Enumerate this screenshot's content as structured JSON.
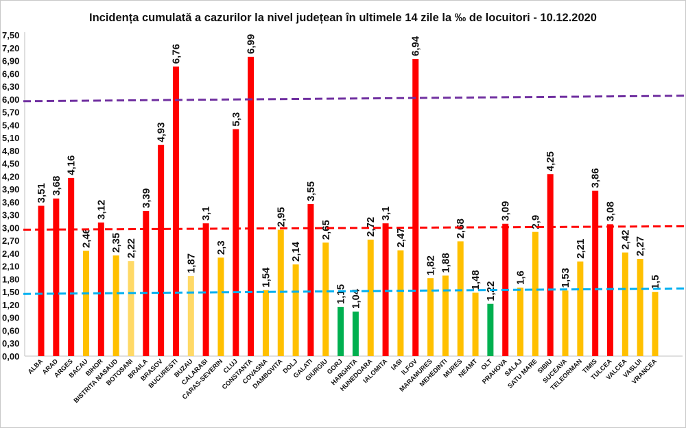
{
  "chart_data": {
    "type": "bar",
    "title": "Incidența cumulată a cazurilor la nivel județean în ultimele 14 zile la ‰ de locuitori - 10.12.2020",
    "xlabel": "",
    "ylabel": "",
    "ylim": [
      0,
      7.5
    ],
    "ytick_step": 0.3,
    "ytick_labels": [
      "0,00",
      "0,30",
      "0,60",
      "0,90",
      "1,20",
      "1,50",
      "1,80",
      "2,10",
      "2,40",
      "2,70",
      "3,00",
      "3,30",
      "3,60",
      "3,90",
      "4,20",
      "4,50",
      "4,80",
      "5,10",
      "5,40",
      "5,70",
      "6,00",
      "6,30",
      "6,60",
      "6,90",
      "7,20",
      "7,50"
    ],
    "grid": false,
    "legend": "none",
    "colors": {
      "red": "#ff0000",
      "orange": "#ffc000",
      "light_yellow": "#ffd966",
      "green": "#00b050",
      "threshold_6": "#7030a0",
      "threshold_3": "#ff0000",
      "threshold_1_5": "#00b0f0"
    },
    "thresholds": [
      {
        "value": 6.0,
        "color": "#7030a0"
      },
      {
        "value": 3.0,
        "color": "#ff0000"
      },
      {
        "value": 1.5,
        "color": "#00b0f0"
      }
    ],
    "categories": [
      "ALBA",
      "ARAD",
      "ARGES",
      "BACAU",
      "BIHOR",
      "BISTRITA NASAUD",
      "BOTOSANI",
      "BRAILA",
      "BRASOV",
      "BUCURESTI",
      "BUZAU",
      "CALARASI",
      "CARAS-SEVERIN",
      "CLUJ",
      "CONSTANTA",
      "COVASNA",
      "DAMBOVITA",
      "DOLJ",
      "GALATI",
      "GIURGIU",
      "GORJ",
      "HARGHITA",
      "HUNEDOARA",
      "IALOMITA",
      "IASI",
      "ILFOV",
      "MARAMURES",
      "MEHEDINTI",
      "MURES",
      "NEAMT",
      "OLT",
      "PRAHOVA",
      "SALAJ",
      "SATU MARE",
      "SIBIU",
      "SUCEAVA",
      "TELEORMAN",
      "TIMIS",
      "TULCEA",
      "VALCEA",
      "VASLUI",
      "VRANCEA"
    ],
    "values": [
      3.51,
      3.68,
      4.16,
      2.46,
      3.12,
      2.35,
      2.22,
      3.39,
      4.93,
      6.76,
      1.87,
      3.1,
      2.3,
      5.3,
      6.99,
      1.54,
      2.95,
      2.14,
      3.55,
      2.65,
      1.15,
      1.04,
      2.72,
      3.1,
      2.47,
      6.94,
      1.82,
      1.88,
      2.68,
      1.48,
      1.22,
      3.09,
      1.6,
      2.9,
      4.25,
      1.53,
      2.21,
      3.86,
      3.08,
      2.42,
      2.27,
      1.5
    ],
    "value_labels": [
      "3,51",
      "3,68",
      "4,16",
      "2,46",
      "3,12",
      "2,35",
      "2,22",
      "3,39",
      "4,93",
      "6,76",
      "1,87",
      "3,1",
      "2,3",
      "5,3",
      "6,99",
      "1,54",
      "2,95",
      "2,14",
      "3,55",
      "2,65",
      "1,15",
      "1,04",
      "2,72",
      "3,1",
      "2,47",
      "6,94",
      "1,82",
      "1,88",
      "2,68",
      "1,48",
      "1,22",
      "3,09",
      "1,6",
      "2,9",
      "4,25",
      "1,53",
      "2,21",
      "3,86",
      "3,08",
      "2,42",
      "2,27",
      "1,5"
    ],
    "bar_colors": [
      "red",
      "red",
      "red",
      "orange",
      "red",
      "orange",
      "light_yellow",
      "red",
      "red",
      "red",
      "light_yellow",
      "red",
      "orange",
      "red",
      "red",
      "orange",
      "orange",
      "orange",
      "red",
      "orange",
      "green",
      "green",
      "orange",
      "red",
      "orange",
      "red",
      "orange",
      "orange",
      "orange",
      "orange",
      "green",
      "red",
      "orange",
      "orange",
      "red",
      "orange",
      "orange",
      "red",
      "red",
      "orange",
      "orange",
      "orange"
    ]
  }
}
